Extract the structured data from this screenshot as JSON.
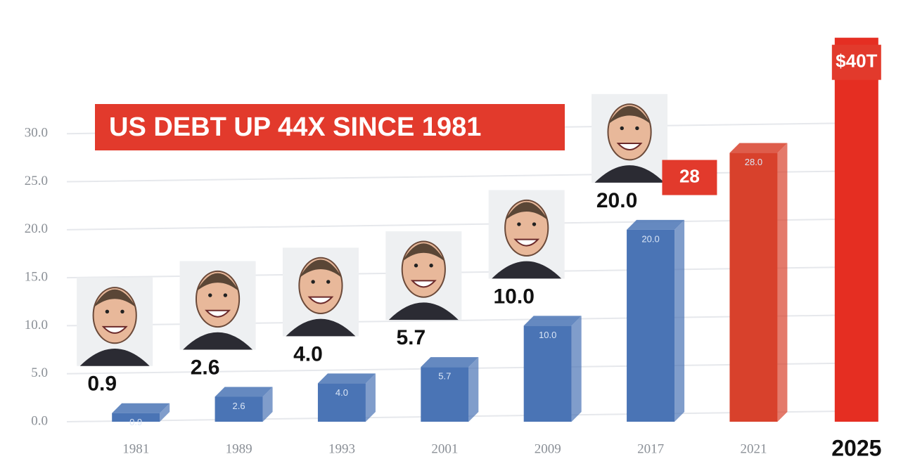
{
  "chart_data": {
    "type": "bar",
    "title": "US DEBT UP 44X SINCE 1981",
    "categories": [
      "1981",
      "1989",
      "1993",
      "2001",
      "2009",
      "2017",
      "2021",
      "2025"
    ],
    "values": [
      0.9,
      2.6,
      4.0,
      5.7,
      10.0,
      20.0,
      28.0,
      40
    ],
    "value_labels": [
      "0.9",
      "2.6",
      "4.0",
      "5.7",
      "10.0",
      "20.0",
      "28",
      "$40T"
    ],
    "inner_labels": [
      "0.9",
      "2.6",
      "4.0",
      "5.7",
      "10.0",
      "20.0",
      "28.0",
      null
    ],
    "color": "#4a74b5",
    "colors": [
      "#4a74b5",
      "#4a74b5",
      "#4a74b5",
      "#4a74b5",
      "#4a74b5",
      "#4a74b5",
      "#d8412c",
      "#e52e22"
    ],
    "ylim": [
      0,
      41
    ],
    "yticks": [
      {
        "value": 0,
        "label": "0.0"
      },
      {
        "value": 5,
        "label": "5.0"
      },
      {
        "value": 10,
        "label": "10.0"
      },
      {
        "value": 15,
        "label": "15.0"
      },
      {
        "value": 20,
        "label": "20.0"
      },
      {
        "value": 25,
        "label": "25.0"
      },
      {
        "value": 30,
        "label": "30.0"
      }
    ],
    "grid": true
  }
}
